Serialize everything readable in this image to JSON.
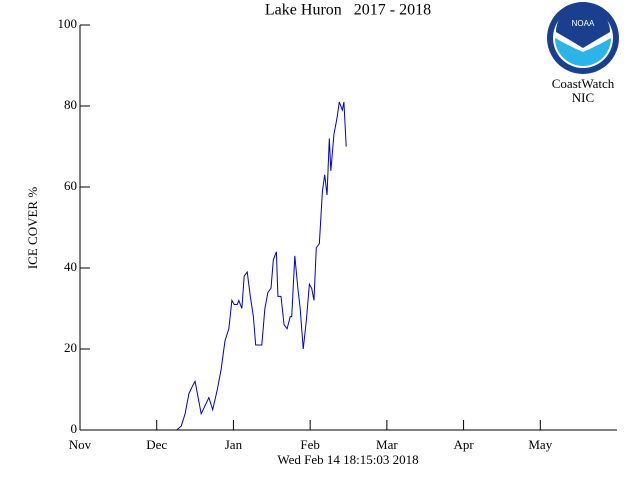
{
  "chart_data": {
    "type": "line",
    "title": "Lake Huron   2017 - 2018",
    "subtitle": "Wed Feb 14 18:15:03 2018",
    "ylabel": "ICE COVER %",
    "logo_text": "NOAA",
    "logo_caption": [
      "CoastWatch",
      "NIC"
    ],
    "xlim": [
      0,
      7
    ],
    "xticks": [
      {
        "value": 0,
        "label": "Nov"
      },
      {
        "value": 1,
        "label": "Dec"
      },
      {
        "value": 2,
        "label": "Jan"
      },
      {
        "value": 3,
        "label": "Feb"
      },
      {
        "value": 4,
        "label": "Mar"
      },
      {
        "value": 5,
        "label": "Apr"
      },
      {
        "value": 6,
        "label": "May"
      }
    ],
    "ylim": [
      0,
      100
    ],
    "yticks": [
      0,
      20,
      40,
      60,
      80,
      100
    ],
    "series": [
      {
        "color": "#0000cc",
        "x": [
          1.26,
          1.32,
          1.37,
          1.42,
          1.47,
          1.5,
          1.54,
          1.58,
          1.63,
          1.68,
          1.73,
          1.79,
          1.84,
          1.89,
          1.94,
          1.98,
          2.01,
          2.05,
          2.07,
          2.11,
          2.14,
          2.18,
          2.22,
          2.26,
          2.29,
          2.33,
          2.37,
          2.41,
          2.45,
          2.49,
          2.52,
          2.56,
          2.58,
          2.62,
          2.66,
          2.7,
          2.74,
          2.76,
          2.8,
          2.84,
          2.87,
          2.91,
          2.95,
          2.99,
          3.02,
          3.05,
          3.08,
          3.12,
          3.16,
          3.19,
          3.22,
          3.25,
          3.27,
          3.31,
          3.35,
          3.38,
          3.42,
          3.44,
          3.47
        ],
        "values": [
          0,
          1,
          4,
          9,
          11,
          12,
          8,
          4,
          6,
          8,
          5,
          10,
          15,
          22,
          25,
          32,
          31,
          31,
          32,
          30,
          38,
          39,
          33,
          28,
          21,
          21,
          21,
          30,
          34,
          35,
          42,
          44,
          33,
          33,
          26,
          25,
          28,
          28,
          43,
          35,
          30,
          20,
          27,
          36,
          35,
          32,
          45,
          46,
          59,
          63,
          58,
          72,
          64,
          73,
          77,
          81,
          79,
          81,
          70
        ]
      }
    ]
  }
}
